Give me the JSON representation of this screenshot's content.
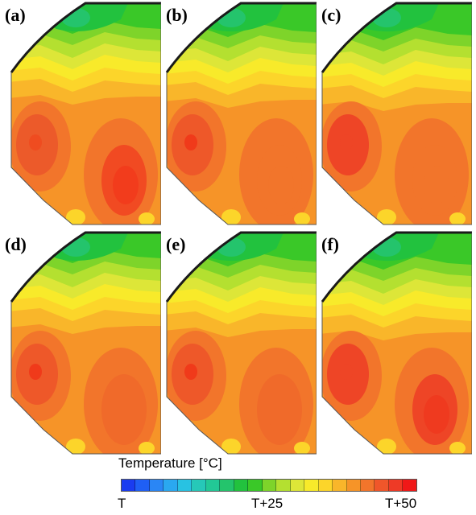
{
  "panels": [
    {
      "label": "(a)",
      "hot_left": "#ec5a2a",
      "hot_right": "#f14a22",
      "core_left": "#ef4c20",
      "core_right": "#f23c1c"
    },
    {
      "label": "(b)",
      "hot_left": "#ee5829",
      "hot_right": "#f2752b",
      "core_left": "#f03a1a",
      "core_right": "#f2752b"
    },
    {
      "label": "(c)",
      "hot_left": "#ee4526",
      "hot_right": "#f2752b",
      "core_left": "#ee4526",
      "core_right": "#f2752b"
    },
    {
      "label": "(d)",
      "hot_left": "#ee5829",
      "hot_right": "#f06a2a",
      "core_left": "#f03a1a",
      "core_right": "#f06a2a"
    },
    {
      "label": "(e)",
      "hot_left": "#ee5829",
      "hot_right": "#f06a2a",
      "core_left": "#f03a1a",
      "core_right": "#f06a2a"
    },
    {
      "label": "(f)",
      "hot_left": "#ee4526",
      "hot_right": "#ee4526",
      "core_left": "#ee4526",
      "core_right": "#ef3a1f"
    }
  ],
  "legend": {
    "title": "Temperature [°C]",
    "ticks": [
      "T",
      "T+25",
      "T+50"
    ],
    "colors": [
      "#1a3cf0",
      "#1f5ff5",
      "#2a86f5",
      "#2aa8f0",
      "#28c2e2",
      "#26c8b8",
      "#22c896",
      "#24c46c",
      "#22c23e",
      "#3ac828",
      "#7ed42a",
      "#b4e030",
      "#dde638",
      "#f8ea2a",
      "#fcd52a",
      "#f9b62a",
      "#f69428",
      "#f2752b",
      "#f0562a",
      "#ee3a26",
      "#f01818"
    ]
  }
}
